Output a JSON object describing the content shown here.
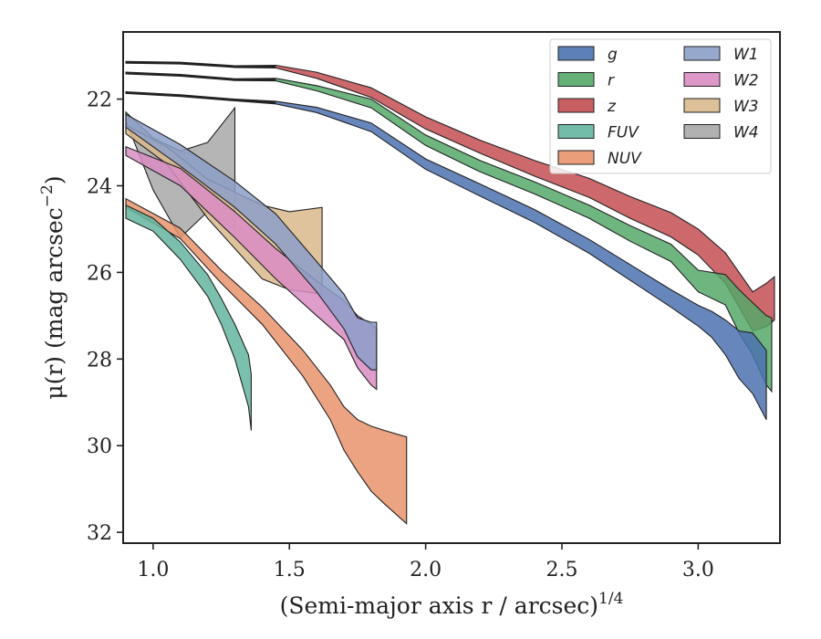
{
  "chart_data": {
    "type": "area",
    "xlabel": "(Semi-major axis r / arcsec)",
    "xlabel_exponent": "1/4",
    "ylabel": "μ(r) (mag arcsec",
    "ylabel_exponent": "−2",
    "ylabel_close": ")",
    "xlim": [
      0.89,
      3.3
    ],
    "ylim": [
      32.25,
      20.45
    ],
    "y_inverted": true,
    "xticks": [
      1.0,
      1.5,
      2.0,
      2.5,
      3.0
    ],
    "xtick_labels": [
      "1.0",
      "1.5",
      "2.0",
      "2.5",
      "3.0"
    ],
    "yticks": [
      22,
      24,
      26,
      28,
      30,
      32
    ],
    "ytick_labels": [
      "22",
      "24",
      "26",
      "28",
      "30",
      "32"
    ],
    "grid": false,
    "legend_position": "top-right",
    "legend_columns": 2,
    "series": [
      {
        "name": "g",
        "color": "#4c72b0",
        "center": [
          [
            0.9,
            21.85
          ],
          [
            1.1,
            21.92
          ],
          [
            1.3,
            22.02
          ],
          [
            1.45,
            22.08
          ],
          [
            1.6,
            22.25
          ],
          [
            1.8,
            22.65
          ],
          [
            2.0,
            23.5
          ],
          [
            2.2,
            24.1
          ],
          [
            2.4,
            24.7
          ],
          [
            2.6,
            25.4
          ],
          [
            2.75,
            26.0
          ],
          [
            2.9,
            26.6
          ],
          [
            3.0,
            27.0
          ],
          [
            3.05,
            27.2
          ],
          [
            3.1,
            27.5
          ],
          [
            3.15,
            27.9
          ],
          [
            3.2,
            28.1
          ],
          [
            3.25,
            28.6
          ]
        ],
        "half_width": [
          0.02,
          0.02,
          0.02,
          0.03,
          0.06,
          0.1,
          0.12,
          0.14,
          0.15,
          0.16,
          0.18,
          0.2,
          0.24,
          0.3,
          0.4,
          0.55,
          0.7,
          0.8
        ],
        "line_start": 1.45
      },
      {
        "name": "r",
        "color": "#55a868",
        "center": [
          [
            0.9,
            21.4
          ],
          [
            1.1,
            21.45
          ],
          [
            1.3,
            21.55
          ],
          [
            1.45,
            21.55
          ],
          [
            1.6,
            21.75
          ],
          [
            1.8,
            22.1
          ],
          [
            2.0,
            22.95
          ],
          [
            2.2,
            23.55
          ],
          [
            2.4,
            24.05
          ],
          [
            2.6,
            24.6
          ],
          [
            2.75,
            25.1
          ],
          [
            2.9,
            25.55
          ],
          [
            3.0,
            26.2
          ],
          [
            3.1,
            26.4
          ],
          [
            3.15,
            26.9
          ],
          [
            3.2,
            27.3
          ],
          [
            3.25,
            27.8
          ],
          [
            3.27,
            27.9
          ]
        ],
        "half_width": [
          0.02,
          0.02,
          0.02,
          0.03,
          0.06,
          0.1,
          0.12,
          0.13,
          0.14,
          0.15,
          0.18,
          0.2,
          0.25,
          0.35,
          0.5,
          0.6,
          0.8,
          0.85
        ],
        "line_start": 1.45
      },
      {
        "name": "z",
        "color": "#c44e52",
        "center": [
          [
            0.9,
            21.15
          ],
          [
            1.1,
            21.17
          ],
          [
            1.3,
            21.25
          ],
          [
            1.45,
            21.25
          ],
          [
            1.6,
            21.45
          ],
          [
            1.8,
            21.85
          ],
          [
            2.0,
            22.55
          ],
          [
            2.2,
            23.1
          ],
          [
            2.4,
            23.6
          ],
          [
            2.6,
            24.05
          ],
          [
            2.75,
            24.5
          ],
          [
            2.9,
            24.9
          ],
          [
            3.0,
            25.3
          ],
          [
            3.1,
            25.9
          ],
          [
            3.15,
            26.4
          ],
          [
            3.2,
            26.9
          ],
          [
            3.25,
            26.75
          ],
          [
            3.28,
            26.6
          ]
        ],
        "half_width": [
          0.02,
          0.02,
          0.02,
          0.03,
          0.07,
          0.11,
          0.14,
          0.15,
          0.18,
          0.22,
          0.25,
          0.28,
          0.3,
          0.35,
          0.4,
          0.45,
          0.5,
          0.5
        ],
        "line_start": 1.45
      },
      {
        "name": "FUV",
        "color": "#64b5a0",
        "center": [
          [
            0.9,
            24.6
          ],
          [
            1.0,
            24.9
          ],
          [
            1.1,
            25.5
          ],
          [
            1.2,
            26.3
          ],
          [
            1.25,
            26.9
          ],
          [
            1.3,
            27.6
          ],
          [
            1.35,
            28.5
          ],
          [
            1.36,
            29.0
          ]
        ],
        "half_width": [
          0.15,
          0.15,
          0.2,
          0.25,
          0.3,
          0.4,
          0.6,
          0.65
        ]
      },
      {
        "name": "NUV",
        "color": "#e8936b",
        "center": [
          [
            0.9,
            24.4
          ],
          [
            1.1,
            25.1
          ],
          [
            1.25,
            26.1
          ],
          [
            1.4,
            27.0
          ],
          [
            1.55,
            28.1
          ],
          [
            1.65,
            29.0
          ],
          [
            1.7,
            29.6
          ],
          [
            1.75,
            30.0
          ],
          [
            1.8,
            30.3
          ],
          [
            1.85,
            30.5
          ],
          [
            1.93,
            30.8
          ]
        ],
        "half_width": [
          0.1,
          0.12,
          0.15,
          0.2,
          0.3,
          0.4,
          0.5,
          0.6,
          0.75,
          0.85,
          1.0
        ]
      },
      {
        "name": "W1",
        "color": "#8c9fc8",
        "center": [
          [
            0.9,
            22.5
          ],
          [
            1.1,
            23.3
          ],
          [
            1.3,
            24.2
          ],
          [
            1.45,
            25.0
          ],
          [
            1.6,
            26.1
          ],
          [
            1.7,
            26.9
          ],
          [
            1.75,
            27.5
          ],
          [
            1.8,
            27.7
          ],
          [
            1.82,
            27.7
          ]
        ],
        "half_width": [
          0.15,
          0.25,
          0.3,
          0.35,
          0.35,
          0.4,
          0.45,
          0.55,
          0.55
        ]
      },
      {
        "name": "W2",
        "color": "#d98cc3",
        "center": [
          [
            0.9,
            23.2
          ],
          [
            1.1,
            23.8
          ],
          [
            1.3,
            24.9
          ],
          [
            1.45,
            25.8
          ],
          [
            1.6,
            26.6
          ],
          [
            1.7,
            27.1
          ],
          [
            1.75,
            27.6
          ],
          [
            1.8,
            27.9
          ],
          [
            1.82,
            28.0
          ]
        ],
        "half_width": [
          0.1,
          0.2,
          0.3,
          0.35,
          0.4,
          0.45,
          0.6,
          0.7,
          0.7
        ]
      },
      {
        "name": "W3",
        "color": "#d8b98c",
        "center": [
          [
            0.9,
            22.7
          ],
          [
            1.05,
            23.3
          ],
          [
            1.2,
            24.3
          ],
          [
            1.4,
            25.3
          ],
          [
            1.5,
            25.5
          ],
          [
            1.62,
            25.5
          ]
        ],
        "half_width": [
          0.1,
          0.2,
          0.45,
          0.85,
          0.9,
          1.0
        ]
      },
      {
        "name": "W4",
        "color": "#a8a8a8",
        "center": [
          [
            0.9,
            22.4
          ],
          [
            1.0,
            23.5
          ],
          [
            1.1,
            24.2
          ],
          [
            1.2,
            23.8
          ],
          [
            1.3,
            23.6
          ]
        ],
        "half_width": [
          0.1,
          0.6,
          1.0,
          0.8,
          1.4
        ]
      }
    ]
  }
}
